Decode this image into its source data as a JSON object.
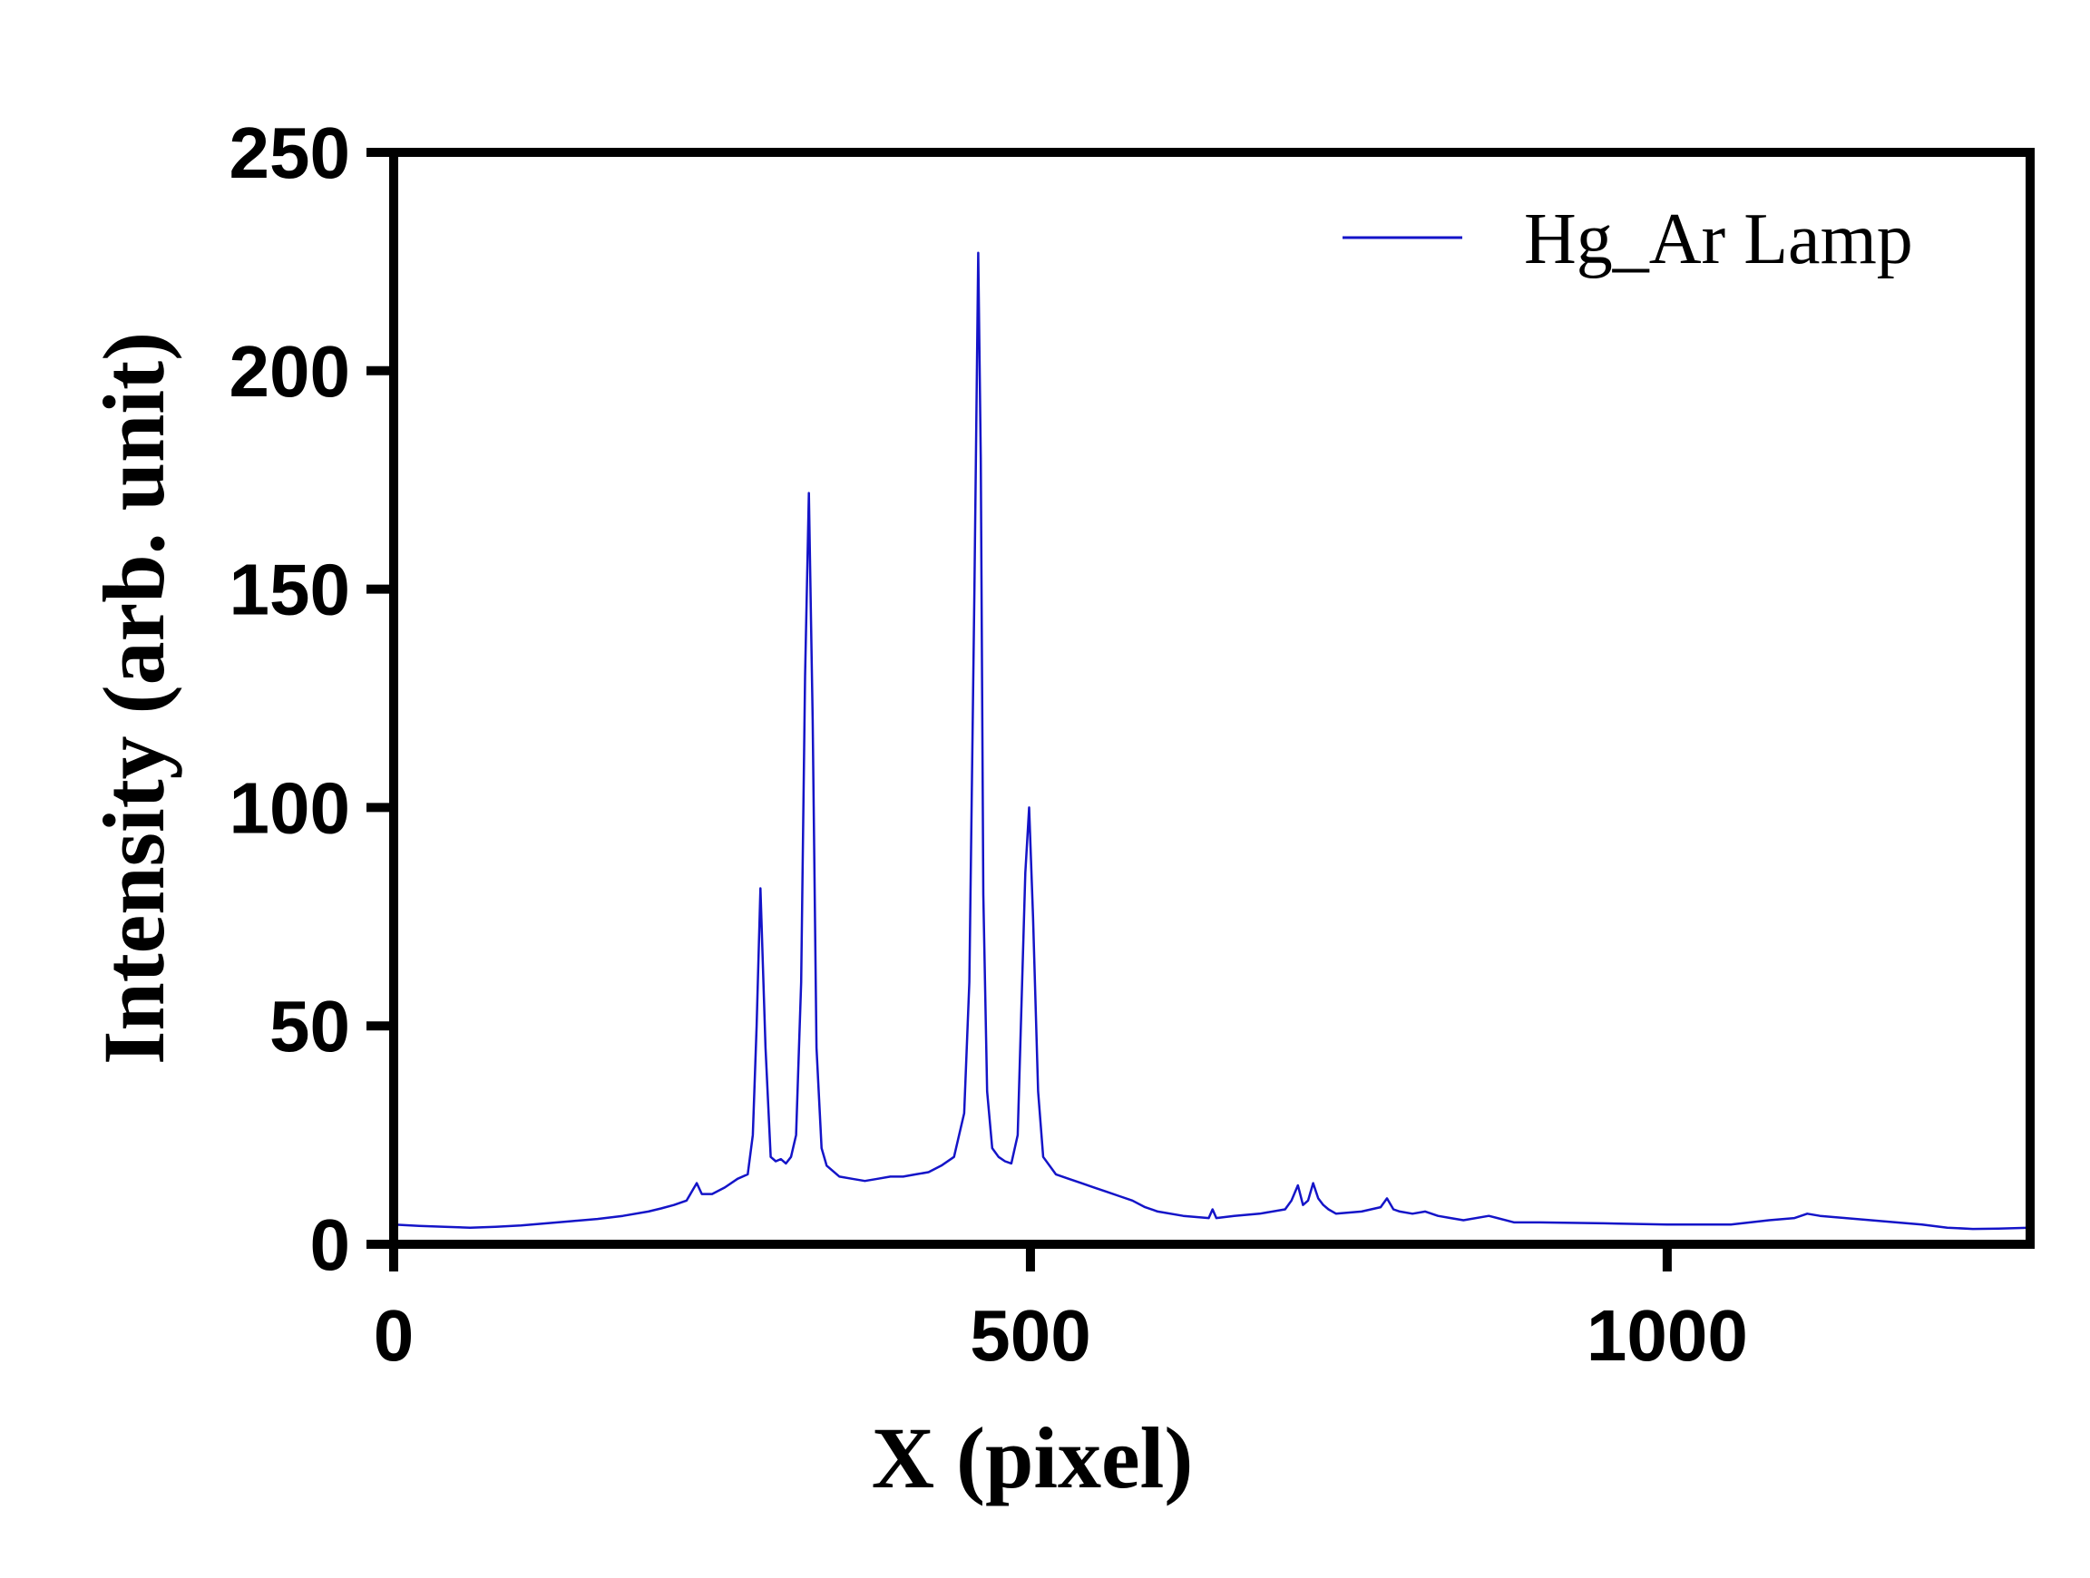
{
  "chart_data": {
    "type": "line",
    "title": "",
    "xlabel": "X (pixel)",
    "ylabel": "Intensity (arb. unit)",
    "xlim": [
      0,
      1285
    ],
    "ylim": [
      0,
      250
    ],
    "x_ticks": [
      0,
      500,
      1000
    ],
    "y_ticks": [
      0,
      50,
      100,
      150,
      200,
      250
    ],
    "grid": false,
    "legend_position": "top-right",
    "series": [
      {
        "name": "Hg_Ar Lamp",
        "color": "#1414c8",
        "x": [
          0,
          20,
          40,
          60,
          80,
          100,
          120,
          140,
          160,
          180,
          200,
          210,
          220,
          230,
          235,
          238,
          242,
          250,
          260,
          270,
          278,
          282,
          285,
          288,
          292,
          296,
          300,
          304,
          308,
          312,
          316,
          320,
          323,
          326,
          329,
          332,
          336,
          340,
          350,
          360,
          370,
          380,
          390,
          400,
          410,
          420,
          430,
          440,
          448,
          452,
          456,
          459,
          461,
          463,
          466,
          470,
          475,
          480,
          485,
          490,
          493,
          496,
          499,
          502,
          506,
          510,
          520,
          530,
          540,
          550,
          560,
          570,
          580,
          590,
          600,
          620,
          640,
          643,
          646,
          660,
          680,
          700,
          705,
          710,
          714,
          718,
          722,
          726,
          730,
          734,
          740,
          760,
          775,
          780,
          785,
          790,
          800,
          810,
          820,
          830,
          840,
          860,
          880,
          900,
          950,
          1000,
          1050,
          1080,
          1100,
          1110,
          1120,
          1140,
          1160,
          1180,
          1200,
          1220,
          1240,
          1260,
          1285
        ],
        "y": [
          4.5,
          4.2,
          4.0,
          3.8,
          4.0,
          4.3,
          4.8,
          5.3,
          5.8,
          6.5,
          7.5,
          8.2,
          9.0,
          10.0,
          12.5,
          14.0,
          11.5,
          11.5,
          13.0,
          15.0,
          16.0,
          25.0,
          50.0,
          81.5,
          45.0,
          20.0,
          19.0,
          19.5,
          18.5,
          20.0,
          25.0,
          60.0,
          130.0,
          172.0,
          120.0,
          45.0,
          22.0,
          18.0,
          15.5,
          15.0,
          14.5,
          15.0,
          15.5,
          15.5,
          16.0,
          16.5,
          18.0,
          20.0,
          30.0,
          60.0,
          150.0,
          227.0,
          180.0,
          80.0,
          35.0,
          22.0,
          20.0,
          19.0,
          18.5,
          25.0,
          55.0,
          85.0,
          100.0,
          75.0,
          35.0,
          20.0,
          16.0,
          15.0,
          14.0,
          13.0,
          12.0,
          11.0,
          10.0,
          8.5,
          7.5,
          6.5,
          6.0,
          8.0,
          6.0,
          6.5,
          7.0,
          8.0,
          10.0,
          13.5,
          9.0,
          10.0,
          14.0,
          10.5,
          9.0,
          8.0,
          7.0,
          7.5,
          8.5,
          10.5,
          8.0,
          7.5,
          7.0,
          7.5,
          6.5,
          6.0,
          5.5,
          6.5,
          5.0,
          5.0,
          4.8,
          4.5,
          4.5,
          5.5,
          6.0,
          7.0,
          6.5,
          6.0,
          5.5,
          5.0,
          4.5,
          3.8,
          3.5,
          3.6,
          3.8
        ]
      }
    ]
  }
}
